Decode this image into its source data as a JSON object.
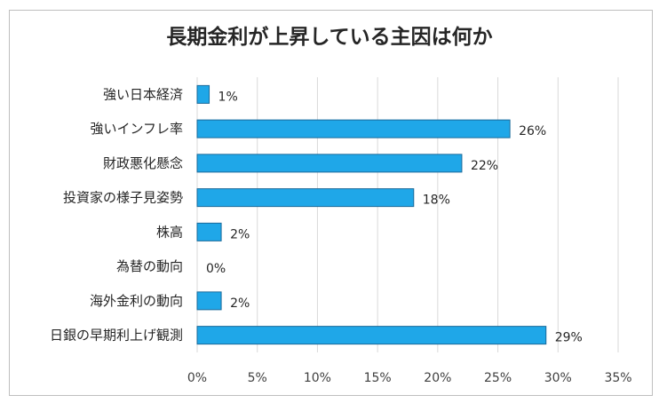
{
  "chart_data": {
    "type": "bar",
    "orientation": "horizontal",
    "title": "長期金利が上昇している主因は何か",
    "categories": [
      "強い日本経済",
      "強いインフレ率",
      "財政悪化懸念",
      "投資家の様子見姿勢",
      "株高",
      "為替の動向",
      "海外金利の動向",
      "日銀の早期利上げ観測"
    ],
    "values": [
      1,
      26,
      22,
      18,
      2,
      0,
      2,
      29
    ],
    "value_labels": [
      "1%",
      "26%",
      "22%",
      "18%",
      "2%",
      "0%",
      "2%",
      "29%"
    ],
    "xlim": [
      0,
      35
    ],
    "xticks": [
      "0%",
      "5%",
      "10%",
      "15%",
      "20%",
      "25%",
      "30%",
      "35%"
    ],
    "gridlines": true,
    "legend": "none",
    "bar_color": "#1fa7e8",
    "bar_edge_color": "#1a6a9a"
  }
}
